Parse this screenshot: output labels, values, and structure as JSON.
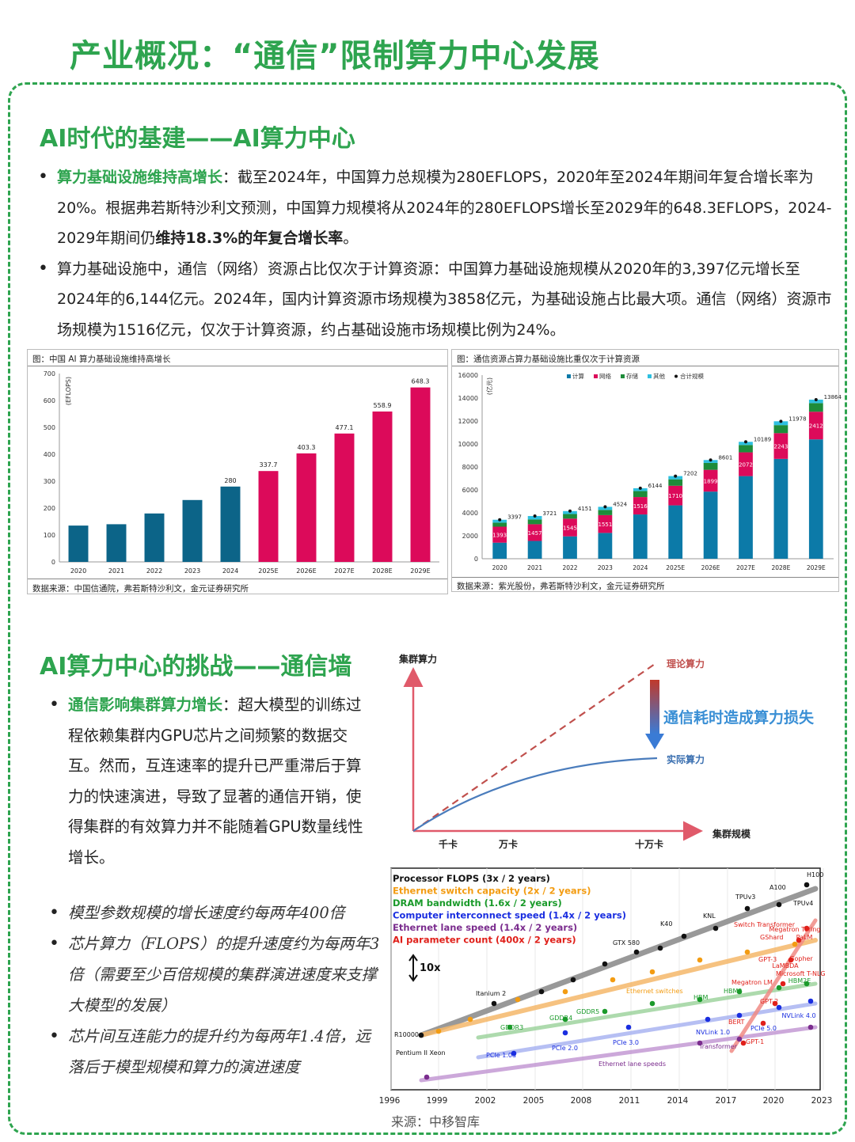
{
  "title": "产业概况：“通信”限制算力中心发展",
  "section1": {
    "heading": "AI时代的基建——AI算力中心",
    "b1_lead": "算力基础设施维持高增长",
    "b1_text": "：截至2024年，中国算力总规模为280EFLOPS，2020年至2024年期间年复合增长率为20%。根据弗若斯特沙利文预测，中国算力规模将从2024年的280EFLOPS增长至2029年的648.3EFLOPS，2024-2029年期间仍",
    "b1_bold": "维持18.3%的年复合增长率",
    "b1_end": "。",
    "b2_text": "算力基础设施中，通信（网络）资源占比仅次于计算资源：中国算力基础设施规模从2020年的3,397亿元增长至2024年的6,144亿元。2024年，国内计算资源市场规模为3858亿元，为基础设施占比最大项。通信（网络）资源市场规模为1516亿元，仅次于计算资源，约占基础设施市场规模比例为24%。"
  },
  "fig1": {
    "caption": "图：中国 AI 算力基础设施维持高增长",
    "source": "数据来源：中国信通院，弗若斯特沙利文，金元证券研究所"
  },
  "fig2": {
    "caption": "图：通信资源占算力基础设施比重仅次于计算资源",
    "source": "数据来源：紫光股份，弗若斯特沙利文，金元证券研究所"
  },
  "section2": {
    "heading": "AI算力中心的挑战——通信墙",
    "b1_lead": "通信影响集群算力增长",
    "b1_text": "：超大模型的训练过程依赖集群内GPU芯片之间频繁的数据交互。然而，互连速率的提升已严重滞后于算力的快速演进，导致了显著的通信开销，使得集群的有效算力并不能随着GPU数量线性增长。",
    "i1": "模型参数规模的增长速度约每两年400倍",
    "i2": "芯片算力（FLOPS）的提升速度约为每两年3倍（需要至少百倍规模的集群演进速度来支撑大模型的发展）",
    "i3": "芯片间互连能力的提升约为每两年1.4倍，远落后于模型规模和算力的演进速度"
  },
  "source_bottom": "来源：中移智库",
  "chart_data": [
    {
      "type": "bar",
      "title": "图：中国 AI 算力基础设施维持高增长",
      "ylabel": "(EFLOPS)",
      "categories": [
        "2020",
        "2021",
        "2022",
        "2023",
        "2024",
        "2025E",
        "2026E",
        "2027E",
        "2028E",
        "2029E"
      ],
      "values": [
        135,
        140,
        180,
        230,
        280,
        337.7,
        403.3,
        477.1,
        558.9,
        648.3
      ],
      "value_labels": [
        "",
        "",
        "",
        "",
        "280",
        "337.7",
        "403.3",
        "477.1",
        "558.9",
        "648.3"
      ],
      "yticks": [
        "0",
        "100",
        "200",
        "300",
        "400",
        "500",
        "600",
        "700"
      ],
      "ylim": [
        0,
        700
      ],
      "colors": {
        "actual": "#0c6488",
        "forecast": "#dc0a5a"
      }
    },
    {
      "type": "bar",
      "stacked": true,
      "title": "图：通信资源占算力基础设施比重仅次于计算资源",
      "ylabel": "(亿元)",
      "categories": [
        "2020",
        "2021",
        "2022",
        "2023",
        "2024",
        "2025E",
        "2026E",
        "2027E",
        "2028E",
        "2029E"
      ],
      "series": [
        {
          "name": "计算",
          "color": "#0c7aa8",
          "values": [
            1400,
            1550,
            1950,
            2250,
            3858,
            4650,
            5850,
            7200,
            8700,
            10400
          ]
        },
        {
          "name": "网络",
          "color": "#dc0a5a",
          "values": [
            1393,
            1457,
            1545,
            1551,
            1516,
            1710,
            1899,
            2072,
            2243,
            2412
          ]
        },
        {
          "name": "存储",
          "color": "#1e8c3a",
          "values": [
            350,
            420,
            400,
            450,
            520,
            560,
            600,
            640,
            700,
            750
          ]
        },
        {
          "name": "其他",
          "color": "#2ec0e0",
          "values": [
            254,
            294,
            256,
            273,
            250,
            282,
            252,
            277,
            335,
            302
          ]
        }
      ],
      "total_name": "合计规模",
      "totals": [
        3397,
        3721,
        4151,
        4524,
        6144,
        7202,
        8601,
        10189,
        11978,
        13864
      ],
      "yticks": [
        "0",
        "2000",
        "4000",
        "6000",
        "8000",
        "10000",
        "12000",
        "14000",
        "16000"
      ],
      "ylim": [
        0,
        16000
      ]
    },
    {
      "type": "line",
      "title": "",
      "ylabel": "集群算力",
      "xlabel": "集群规模",
      "x_ticks": [
        "千卡",
        "万卡",
        "十万卡"
      ],
      "series": [
        {
          "name": "理论算力",
          "style": "dashed",
          "color": "#c0504d"
        },
        {
          "name": "实际算力",
          "style": "solid",
          "color": "#4a7cbc"
        }
      ],
      "annotation": "通信耗时造成算力损失"
    },
    {
      "type": "scatter",
      "title": "",
      "legend": [
        {
          "label": "Processor FLOPS (3x / 2 years)",
          "color": "#111111"
        },
        {
          "label": "Ethernet switch capacity (2x / 2 years)",
          "color": "#f39c12"
        },
        {
          "label": "DRAM bandwidth (1.6x / 2 years)",
          "color": "#1a9a2a"
        },
        {
          "label": "Computer interconnect speed (1.4x / 2 years)",
          "color": "#1a2ee0"
        },
        {
          "label": "Ethernet lane speed (1.4x / 2 years)",
          "color": "#7b2d8e"
        },
        {
          "label": "AI parameter count (400x / 2 years)",
          "color": "#e0201a"
        }
      ],
      "scale_note": "10x",
      "x_ticks": [
        "1996",
        "1999",
        "2002",
        "2005",
        "2008",
        "2011",
        "2014",
        "2017",
        "2020",
        "2023"
      ],
      "labels": [
        "H100",
        "A100",
        "TPUv3",
        "TPUv4",
        "KNL",
        "K40",
        "GTX 580",
        "Itanium 2",
        "R10000",
        "Pentium II Xeon",
        "Switch Transformer",
        "Megatron Turing",
        "PaLM",
        "GShard",
        "GPT-3",
        "Gopher",
        "LaMBDA",
        "Microsoft T-NLG",
        "HBM2E",
        "Megatron LM",
        "HBM2",
        "HBM",
        "GPT-2",
        "NVLink 4.0",
        "BERT",
        "PCIe 5.0",
        "NVLink 1.0",
        "Transformer",
        "GPT-1",
        "Ethernet switches",
        "GDDR5",
        "GDDR4",
        "GDDR3",
        "PCIe 3.0",
        "PCIe 2.0",
        "PCIe 1.0a",
        "Ethernet lane speeds"
      ]
    }
  ]
}
